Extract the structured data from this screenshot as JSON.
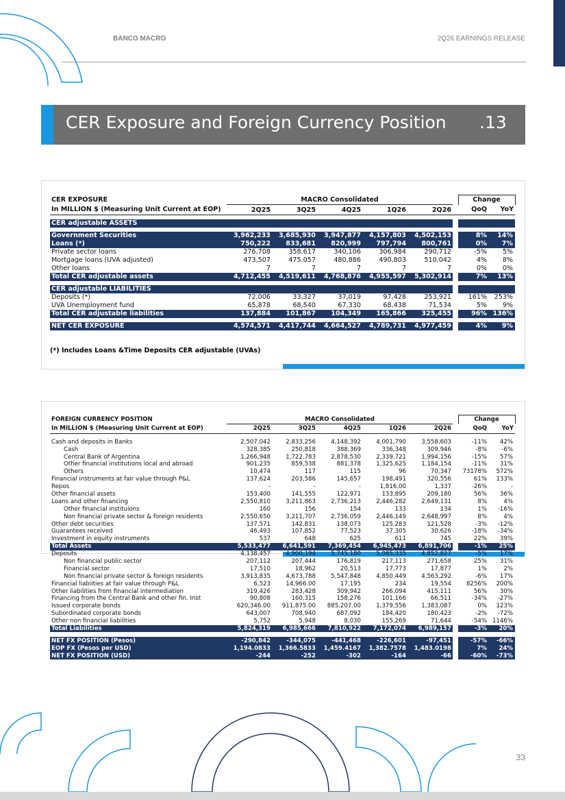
{
  "header": {
    "brand": "BANCO MACRO",
    "release": "2Q26 EARNINGS RELEASE"
  },
  "section": {
    "title": "CER Exposure and Foreign Currency Position",
    "number": ".13"
  },
  "cer_table": {
    "title": "CER EXPOSURE",
    "group": "MACRO Consolidated",
    "change": "Change",
    "columns": [
      "In MILLION $ (Measuring Unit Current at EOP)",
      "2Q25",
      "3Q25",
      "4Q25",
      "1Q26",
      "2Q26",
      "QoQ",
      "YoY"
    ],
    "rows": [
      [
        "CER adjustable ASSETS"
      ],
      [
        "Government Securities",
        "3,962,233",
        "3,685,930",
        "3,947,877",
        "4,157,803",
        "4,502,153",
        "8%",
        "14%"
      ],
      [
        "Loans (*)",
        "750,222",
        "833,681",
        "820,999",
        "797,794",
        "800,761",
        "0%",
        "7%"
      ],
      [
        "Private sector loans",
        "276,708",
        "358,617",
        "340,106",
        "306,984",
        "290,712",
        "-5%",
        "5%"
      ],
      [
        "Mortgage loans (UVA adjusted)",
        "473,507",
        "475,057",
        "480,886",
        "490,803",
        "510,042",
        "4%",
        "8%"
      ],
      [
        "Other loans",
        "7",
        "7",
        "7",
        "7",
        "7",
        "0%",
        "0%"
      ],
      [
        "Total CER adjustable assets",
        "4,712,455",
        "4,519,611",
        "4,768,876",
        "4,955,597",
        "5,302,914",
        "7%",
        "13%"
      ],
      [
        "CER adjustable LIABILITIES"
      ],
      [
        "Deposits (*)",
        "72,006",
        "33,327",
        "37,019",
        "97,428",
        "253,921",
        "161%",
        "253%"
      ],
      [
        "UVA Unemployment fund",
        "65,878",
        "68,540",
        "67,330",
        "68,438",
        "71,534",
        "5%",
        "9%"
      ],
      [
        "Total CER adjustable liabilities",
        "137,884",
        "101,867",
        "104,349",
        "165,866",
        "325,455",
        "96%",
        "136%"
      ],
      [
        "NET CER EXPOSURE",
        "4,574,571",
        "4,417,744",
        "4,664,527",
        "4,789,731",
        "4,977,459",
        "4%",
        "9%"
      ]
    ],
    "footnote": "(*) Includes Loans &Time Deposits CER adjustable (UVAs)"
  },
  "fx_table": {
    "title": "FOREIGN CURRENCY POSITION",
    "group": "MACRO Consolidated",
    "change": "Change",
    "columns": [
      "In MILLION $ (Measuring Unit Current at EOP)",
      "2Q25",
      "3Q25",
      "4Q25",
      "1Q26",
      "2Q26",
      "QoQ",
      "YoY"
    ],
    "rows": [
      [
        "Cash and deposits in Banks",
        "2,507,042",
        "2,833,256",
        "4,148,392",
        "4,001,790",
        "3,558,603",
        "-11%",
        "42%"
      ],
      [
        "Cash",
        "328,385",
        "250,818",
        "388,369",
        "336,348",
        "309,946",
        "-8%",
        "-6%"
      ],
      [
        "Central Bank of Argentina",
        "1,266,948",
        "1,722,783",
        "2,878,530",
        "2,339,721",
        "1,994,156",
        "-15%",
        "57%"
      ],
      [
        "Other financial institutions local and abroad",
        "901,235",
        "859,538",
        "881,378",
        "1,325,625",
        "1,184,154",
        "-11%",
        "31%"
      ],
      [
        "Others",
        "10,474",
        "117",
        "115",
        "96",
        "70,347",
        "73178%",
        "572%"
      ],
      [
        "Financial instruments at fair value through P&L",
        "137,624",
        "203,586",
        "145,657",
        "198,491",
        "320,556",
        "61%",
        "133%"
      ],
      [
        "Repos",
        "-",
        "-",
        "-",
        "1,816.00",
        "1,337",
        "-26%",
        "-"
      ],
      [
        "Other financial assets",
        "153,400",
        "141,555",
        "122,971",
        "133,895",
        "209,180",
        "56%",
        "36%"
      ],
      [
        "Loans and other financing",
        "2,550,810",
        "3,211,863",
        "2,736,213",
        "2,446,282",
        "2,649,131",
        "8%",
        "4%"
      ],
      [
        "Other financial instituions",
        "160",
        "156",
        "154",
        "133",
        "134",
        "1%",
        "-16%"
      ],
      [
        "Non financial private sector & foreign residents",
        "2,550,650",
        "3,211,707",
        "2,736,059",
        "2,446,149",
        "2,648,997",
        "8%",
        "4%"
      ],
      [
        "Other debt securities",
        "137,571",
        "142,831",
        "138,073",
        "125,283",
        "121,528",
        "-3%",
        "-12%"
      ],
      [
        "Guarantees received",
        "46,493",
        "107,852",
        "77,523",
        "37,305",
        "30,626",
        "-18%",
        "-34%"
      ],
      [
        "Investment in equity instruments",
        "537",
        "648",
        "625",
        "611",
        "745",
        "22%",
        "39%"
      ],
      [
        "Total Assets",
        "5,533,477",
        "6,641,591",
        "7,369,454",
        "6,945,473",
        "6,891,706",
        "-1%",
        "25%"
      ],
      [
        "Deposits",
        "4,138,457",
        "4,900,194",
        "5,745,180",
        "5,085,335",
        "4,852,827",
        "-5%",
        "17%"
      ],
      [
        "Non financial public sector",
        "207,112",
        "207,444",
        "176,819",
        "217,113",
        "271,658",
        "25%",
        "31%"
      ],
      [
        "Financial sector",
        "17,510",
        "18,962",
        "20,513",
        "17,773",
        "17,877",
        "1%",
        "2%"
      ],
      [
        "Non financial private sector & foreign residents",
        "3,913,835",
        "4,673,788",
        "5,547,848",
        "4,850,449",
        "4,563,292",
        "-6%",
        "17%"
      ],
      [
        "Financial liabiities at fair value through P&L",
        "6,523",
        "14,966.00",
        "17,195",
        "234",
        "19,554",
        "8256%",
        "200%"
      ],
      [
        "Other liabilities from financial intermediation",
        "319,426",
        "283,428",
        "309,942",
        "266,094",
        "415,111",
        "56%",
        "30%"
      ],
      [
        "Financing from the Central Bank and other fin. Inst",
        "90,808",
        "160,315",
        "158,276",
        "101,166",
        "66,511",
        "-34%",
        "-27%"
      ],
      [
        "Issued corporate bonds",
        "620,346.00",
        "911,875.00",
        "885,207.00",
        "1,379,556",
        "1,383,087",
        "0%",
        "123%"
      ],
      [
        "Subordinated corporate bonds",
        "643,007",
        "708,940",
        "687,092",
        "184,420",
        "180,423",
        "-2%",
        "-72%"
      ],
      [
        "Other non financial liabilities",
        "5,752",
        "5,948",
        "8,030",
        "155,269",
        "71,644",
        "-54%",
        "1146%"
      ],
      [
        "Total Liabilities",
        "5,824,319",
        "6,985,666",
        "7,810,922",
        "7,172,074",
        "6,989,157",
        "-3%",
        "20%"
      ],
      [
        "NET FX POSITION (Pesos)",
        "-290,842",
        "-344,075",
        "-441,468",
        "-226,601",
        "-97,451",
        "-57%",
        "-66%"
      ],
      [
        "EOP FX (Pesos per USD)",
        "1,194.0833",
        "1,366.5833",
        "1,459.4167",
        "1,382.7578",
        "1,483.0198",
        "7%",
        "24%"
      ],
      [
        "NET FX POSITION (USD)",
        "-244",
        "-252",
        "-302",
        "-164",
        "-66",
        "-60%",
        "-73%"
      ]
    ]
  },
  "page_number": "33"
}
